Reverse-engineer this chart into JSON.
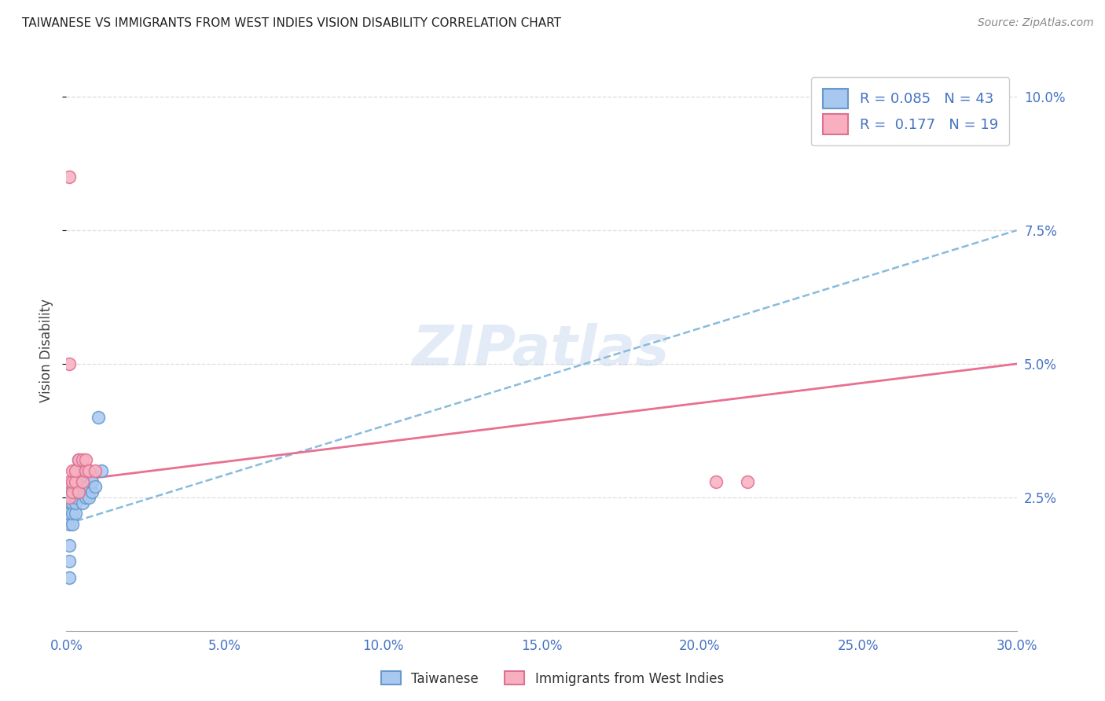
{
  "title": "TAIWANESE VS IMMIGRANTS FROM WEST INDIES VISION DISABILITY CORRELATION CHART",
  "source": "Source: ZipAtlas.com",
  "ylabel": "Vision Disability",
  "label_color": "#4472C4",
  "background_color": "#ffffff",
  "R_taiwanese": 0.085,
  "N_taiwanese": 43,
  "R_westindies": 0.177,
  "N_westindies": 19,
  "tw_color_face": "#A8C8F0",
  "tw_color_edge": "#6699CC",
  "wi_color_face": "#F8B0C0",
  "wi_color_edge": "#E07090",
  "trend_tw_color": "#88BBDD",
  "trend_wi_color": "#E87090",
  "grid_color": "#dddddd",
  "xlim": [
    0.0,
    0.3
  ],
  "ylim": [
    0.0,
    0.105
  ],
  "xticks": [
    0.0,
    0.05,
    0.1,
    0.15,
    0.2,
    0.25,
    0.3
  ],
  "yticks": [
    0.025,
    0.05,
    0.075,
    0.1
  ],
  "tw_trend_x0": 0.0,
  "tw_trend_y0": 0.02,
  "tw_trend_x1": 0.3,
  "tw_trend_y1": 0.075,
  "wi_trend_x0": 0.0,
  "wi_trend_y0": 0.028,
  "wi_trend_x1": 0.3,
  "wi_trend_y1": 0.05,
  "tw_x": [
    0.001,
    0.001,
    0.001,
    0.001,
    0.001,
    0.0015,
    0.0015,
    0.002,
    0.002,
    0.002,
    0.002,
    0.002,
    0.002,
    0.002,
    0.0025,
    0.0025,
    0.003,
    0.003,
    0.003,
    0.003,
    0.003,
    0.003,
    0.003,
    0.003,
    0.004,
    0.004,
    0.004,
    0.004,
    0.005,
    0.005,
    0.005,
    0.005,
    0.006,
    0.006,
    0.006,
    0.007,
    0.007,
    0.007,
    0.008,
    0.008,
    0.009,
    0.01,
    0.011
  ],
  "tw_y": [
    0.01,
    0.013,
    0.016,
    0.02,
    0.022,
    0.024,
    0.025,
    0.02,
    0.022,
    0.024,
    0.025,
    0.026,
    0.027,
    0.028,
    0.026,
    0.028,
    0.022,
    0.024,
    0.025,
    0.026,
    0.027,
    0.028,
    0.029,
    0.03,
    0.026,
    0.028,
    0.03,
    0.032,
    0.024,
    0.026,
    0.028,
    0.03,
    0.025,
    0.027,
    0.03,
    0.025,
    0.027,
    0.03,
    0.026,
    0.028,
    0.027,
    0.04,
    0.03
  ],
  "wi_x": [
    0.001,
    0.001,
    0.001,
    0.001,
    0.002,
    0.002,
    0.002,
    0.003,
    0.003,
    0.004,
    0.004,
    0.005,
    0.005,
    0.006,
    0.006,
    0.007,
    0.009,
    0.205,
    0.215
  ],
  "wi_y": [
    0.025,
    0.028,
    0.05,
    0.085,
    0.026,
    0.028,
    0.03,
    0.028,
    0.03,
    0.026,
    0.032,
    0.028,
    0.032,
    0.03,
    0.032,
    0.03,
    0.03,
    0.028,
    0.028
  ]
}
